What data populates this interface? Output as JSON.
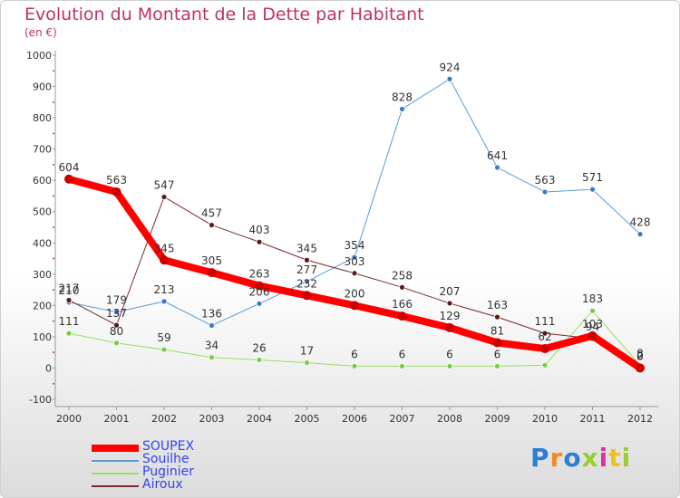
{
  "header": {
    "title": "Evolution du Montant de la Dette par Habitant",
    "subtitle": "(en €)"
  },
  "logo": {
    "text": "Proxiti"
  },
  "colors": {
    "SOUPEX": "#ff0000",
    "Souilhe": "#5b9bd5",
    "Puginier": "#99dd66",
    "Airoux": "#7a2a2a",
    "title": "#c0306a",
    "legend_text": "#3344ee"
  },
  "chart_data": {
    "type": "line",
    "title": "Evolution du Montant de la Dette par Habitant",
    "subtitle": "(en €)",
    "x": [
      "2000",
      "2001",
      "2002",
      "2003",
      "2004",
      "2005",
      "2006",
      "2007",
      "2008",
      "2009",
      "2010",
      "2011",
      "2012"
    ],
    "ylim": [
      -100,
      1000
    ],
    "yticks": [
      "-100",
      "0",
      "100",
      "200",
      "300",
      "400",
      "500",
      "600",
      "700",
      "800",
      "900",
      "1000"
    ],
    "grid": false,
    "legend": "bottom-left",
    "series": [
      {
        "name": "SOUPEX",
        "values": [
          604,
          563,
          345,
          305,
          263,
          232,
          200,
          166,
          129,
          81,
          62,
          103,
          0
        ],
        "labels": [
          "604",
          "563",
          "345",
          "305",
          "263",
          "232",
          "200",
          "166",
          "129",
          "81",
          "62",
          "103",
          "0"
        ]
      },
      {
        "name": "Souilhe",
        "values": [
          210,
          179,
          213,
          136,
          206,
          277,
          354,
          828,
          924,
          641,
          563,
          571,
          428
        ],
        "labels": [
          "210",
          "179",
          "213",
          "136",
          "206",
          "277",
          "354",
          "828",
          "924",
          "641",
          "563",
          "571",
          "428"
        ]
      },
      {
        "name": "Puginier",
        "values": [
          111,
          80,
          59,
          34,
          26,
          17,
          6,
          6,
          6,
          6,
          9,
          183,
          8
        ],
        "labels": [
          "111",
          "80",
          "59",
          "34",
          "26",
          "17",
          "6",
          "6",
          "6",
          "6",
          "",
          "183",
          "8"
        ]
      },
      {
        "name": "Airoux",
        "values": [
          217,
          137,
          547,
          457,
          403,
          345,
          303,
          258,
          207,
          163,
          111,
          94,
          2
        ],
        "labels": [
          "217",
          "137",
          "547",
          "457",
          "403",
          "345",
          "303",
          "258",
          "207",
          "163",
          "111",
          "94",
          "2"
        ]
      }
    ]
  }
}
